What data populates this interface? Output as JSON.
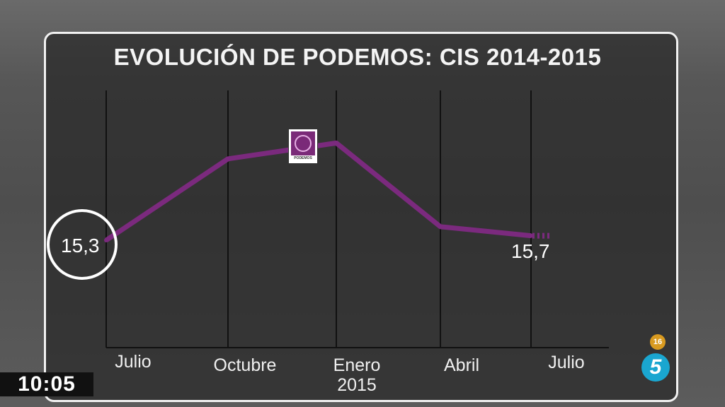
{
  "chart_data": {
    "type": "line",
    "title": "EVOLUCIÓN DE PODEMOS: CIS 2014-2015",
    "categories": [
      "Julio",
      "Octubre",
      "Enero\n2015",
      "Abril",
      "Julio"
    ],
    "category_labels": [
      {
        "main": "Julio"
      },
      {
        "main": "Octubre"
      },
      {
        "main": "Enero",
        "sub": "2015"
      },
      {
        "main": "Abril"
      },
      {
        "main": "Julio"
      }
    ],
    "series": [
      {
        "values": [
          15.3,
          22.5,
          23.9,
          16.5,
          15.7
        ],
        "color": "#7b2a7e"
      }
    ],
    "data_labels": {
      "first": "15,3",
      "last": "15,7"
    },
    "grid": "vertical"
  },
  "logo_text": "PODEMOS",
  "overlay": {
    "clock": "10:05",
    "age_rating": "16",
    "channel_logo": "5"
  }
}
